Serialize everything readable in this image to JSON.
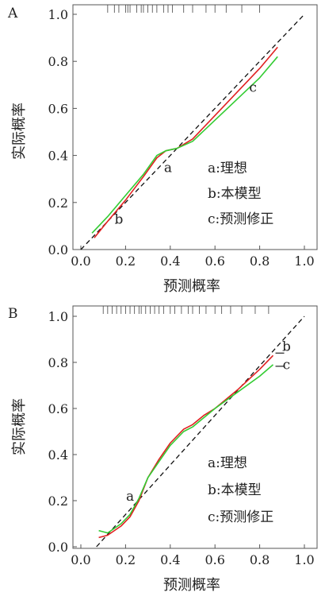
{
  "chart_data": [
    {
      "panel_label": "A",
      "type": "line",
      "xlabel": "预测概率",
      "ylabel": "实际概率",
      "xlim": [
        0.0,
        1.0
      ],
      "ylim": [
        0.0,
        1.0
      ],
      "xticks": [
        "0.0",
        "0.2",
        "0.4",
        "0.6",
        "0.8",
        "1.0"
      ],
      "yticks": [
        "0.0",
        "0.2",
        "0.4",
        "0.6",
        "0.8",
        "1.0"
      ],
      "grid": false,
      "legend": [
        {
          "key": "a",
          "label": "a:理想"
        },
        {
          "key": "b",
          "label": "b:本模型"
        },
        {
          "key": "c",
          "label": "c:预测修正"
        }
      ],
      "series": [
        {
          "key": "a",
          "color": "#111111",
          "dash": true,
          "x": [
            0.0,
            1.0
          ],
          "y": [
            0.0,
            1.0
          ]
        },
        {
          "key": "b",
          "color": "#e02020",
          "dash": false,
          "x": [
            0.06,
            0.12,
            0.2,
            0.28,
            0.34,
            0.38,
            0.43,
            0.5,
            0.6,
            0.7,
            0.8,
            0.88
          ],
          "y": [
            0.05,
            0.12,
            0.21,
            0.31,
            0.39,
            0.42,
            0.43,
            0.47,
            0.57,
            0.67,
            0.77,
            0.86
          ]
        },
        {
          "key": "c",
          "color": "#33cc33",
          "dash": false,
          "x": [
            0.05,
            0.12,
            0.2,
            0.28,
            0.34,
            0.38,
            0.43,
            0.5,
            0.6,
            0.7,
            0.8,
            0.88
          ],
          "y": [
            0.07,
            0.14,
            0.23,
            0.32,
            0.4,
            0.42,
            0.43,
            0.46,
            0.55,
            0.64,
            0.73,
            0.82
          ]
        }
      ],
      "annotations": [
        {
          "text": "a",
          "x": 0.39,
          "y": 0.33
        },
        {
          "text": "b",
          "x": 0.17,
          "y": 0.11
        },
        {
          "text": "c",
          "x": 0.77,
          "y": 0.67
        }
      ],
      "rug_x": [
        0.12,
        0.15,
        0.17,
        0.2,
        0.21,
        0.22,
        0.25,
        0.27,
        0.28,
        0.3,
        0.32,
        0.34,
        0.37,
        0.39,
        0.41,
        0.46,
        0.5,
        0.56,
        0.6,
        0.65,
        0.72,
        0.8
      ]
    },
    {
      "panel_label": "B",
      "type": "line",
      "xlabel": "预测概率",
      "ylabel": "实际概率",
      "xlim": [
        0.0,
        1.0
      ],
      "ylim": [
        0.0,
        1.0
      ],
      "xticks": [
        "0.0",
        "0.2",
        "0.4",
        "0.6",
        "0.8",
        "1.0"
      ],
      "yticks": [
        "0.0",
        "0.2",
        "0.4",
        "0.6",
        "0.8",
        "1.0"
      ],
      "grid": false,
      "legend": [
        {
          "key": "a",
          "label": "a:理想"
        },
        {
          "key": "b",
          "label": "b:本模型"
        },
        {
          "key": "c",
          "label": "c:预测修正"
        }
      ],
      "series": [
        {
          "key": "a",
          "color": "#111111",
          "dash": true,
          "x": [
            0.07,
            1.0
          ],
          "y": [
            0.0,
            1.0
          ]
        },
        {
          "key": "b",
          "color": "#e02020",
          "dash": false,
          "x": [
            0.08,
            0.12,
            0.18,
            0.22,
            0.26,
            0.3,
            0.35,
            0.4,
            0.46,
            0.5,
            0.55,
            0.6,
            0.7,
            0.8,
            0.86
          ],
          "y": [
            0.04,
            0.05,
            0.09,
            0.13,
            0.2,
            0.3,
            0.38,
            0.45,
            0.51,
            0.53,
            0.57,
            0.6,
            0.68,
            0.77,
            0.83
          ]
        },
        {
          "key": "c",
          "color": "#33cc33",
          "dash": false,
          "x": [
            0.08,
            0.12,
            0.18,
            0.22,
            0.26,
            0.3,
            0.35,
            0.4,
            0.46,
            0.5,
            0.55,
            0.6,
            0.7,
            0.8,
            0.86
          ],
          "y": [
            0.07,
            0.06,
            0.1,
            0.14,
            0.21,
            0.3,
            0.37,
            0.44,
            0.5,
            0.52,
            0.56,
            0.6,
            0.67,
            0.74,
            0.79
          ]
        }
      ],
      "annotations": [
        {
          "text": "a",
          "x": 0.22,
          "y": 0.2
        },
        {
          "text": "b",
          "x": 0.92,
          "y": 0.85
        },
        {
          "text": "c",
          "x": 0.92,
          "y": 0.77
        }
      ],
      "rug_x": [
        0.1,
        0.12,
        0.14,
        0.16,
        0.18,
        0.2,
        0.22,
        0.24,
        0.26,
        0.27,
        0.29,
        0.31,
        0.33,
        0.35,
        0.37,
        0.4,
        0.42,
        0.45,
        0.48,
        0.5,
        0.53,
        0.56,
        0.6,
        0.63,
        0.67,
        0.72,
        0.78,
        0.84
      ]
    }
  ]
}
